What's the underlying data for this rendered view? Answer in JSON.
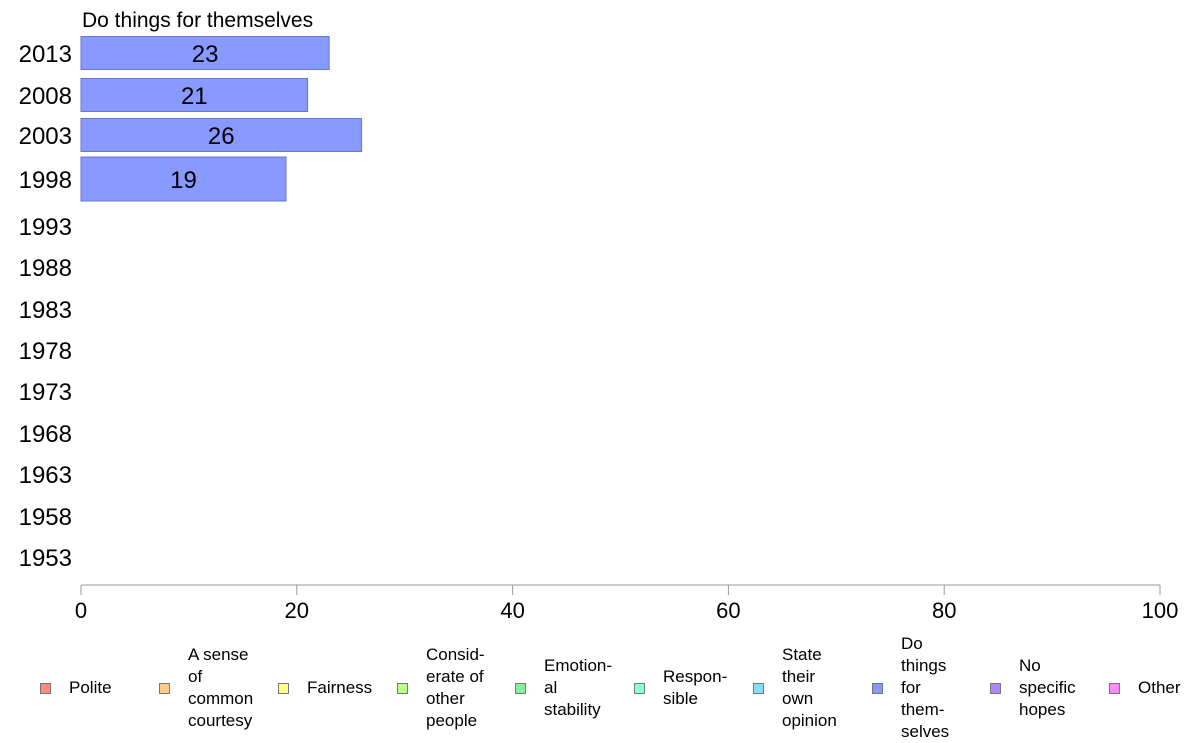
{
  "chart_data": {
    "type": "bar",
    "orientation": "horizontal",
    "title": "Do things for themselves",
    "categories": [
      "2013",
      "2008",
      "2003",
      "1998",
      "1993",
      "1988",
      "1983",
      "1978",
      "1973",
      "1968",
      "1963",
      "1958",
      "1953"
    ],
    "series": [
      {
        "name": "Do things for themselves",
        "values": [
          23,
          21,
          26,
          19,
          null,
          null,
          null,
          null,
          null,
          null,
          null,
          null,
          null
        ],
        "color": "#8899ff"
      }
    ],
    "xlim": [
      0,
      100
    ],
    "xticks": [
      "0",
      "20",
      "40",
      "60",
      "80",
      "100"
    ],
    "grid": false,
    "legend_position": "bottom"
  },
  "legend": [
    {
      "label": "Polite",
      "color": "#ff8888"
    },
    {
      "label": "A sense\nof\ncommon\ncourtesy",
      "color": "#ffcc88"
    },
    {
      "label": "Fairness",
      "color": "#ffff88"
    },
    {
      "label": "Consid-\nerate of\nother\npeople",
      "color": "#bbff88"
    },
    {
      "label": "Emotion-\nal\nstability",
      "color": "#88ee99"
    },
    {
      "label": "Respon-\nsible",
      "color": "#88ffdd"
    },
    {
      "label": "State\ntheir\nown\nopinion",
      "color": "#88ddff"
    },
    {
      "label": "Do\nthings\nfor\nthem-\nselves",
      "color": "#8899ff"
    },
    {
      "label": "No\nspecific\nhopes",
      "color": "#aa88ff"
    },
    {
      "label": "Other",
      "color": "#ff88ff"
    }
  ]
}
